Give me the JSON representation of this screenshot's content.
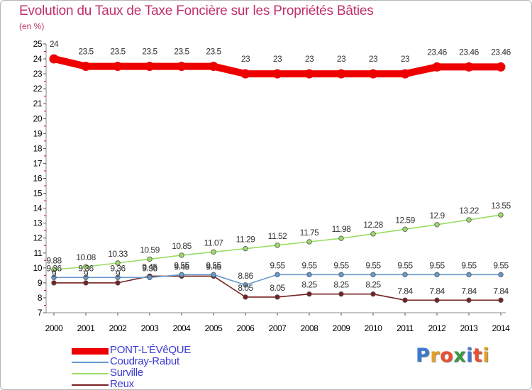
{
  "title": "Evolution du Taux de Taxe Foncière sur les Propriétés Bâties",
  "subtitle": "(en %)",
  "logo": {
    "text": "Proxiti",
    "colors": [
      "#3a7ad0",
      "#e8a020",
      "#e85030",
      "#3a9a40",
      "#3a7ad0",
      "#e85030",
      "#e8a020"
    ]
  },
  "chart_data": {
    "type": "line",
    "x": [
      2000,
      2001,
      2002,
      2003,
      2004,
      2005,
      2006,
      2007,
      2008,
      2009,
      2010,
      2011,
      2012,
      2013,
      2014
    ],
    "ylim": [
      7,
      25
    ],
    "yticks": [
      7,
      8,
      9,
      10,
      11,
      12,
      13,
      14,
      15,
      16,
      17,
      18,
      19,
      20,
      21,
      22,
      23,
      24,
      25
    ],
    "grid": false,
    "legend_position": "bottom-left",
    "series": [
      {
        "name": "PONT-L'ÉVêQUE",
        "color": "#ee0000",
        "values": [
          24,
          23.5,
          23.5,
          23.5,
          23.5,
          23.5,
          23,
          23,
          23,
          23,
          23,
          23,
          23.46,
          23.46,
          23.46
        ],
        "labels": [
          "24",
          "23.5",
          "23.5",
          "23.5",
          "23.5",
          "23.5",
          "23",
          "23",
          "23",
          "23",
          "23",
          "23",
          "23.46",
          "23.46",
          "23.46"
        ]
      },
      {
        "name": "Coudray-Rabut",
        "color": "#6699cc",
        "values": [
          9.36,
          9.36,
          9.36,
          9.36,
          9.55,
          9.55,
          8.86,
          9.55,
          9.55,
          9.55,
          9.55,
          9.55,
          9.55,
          9.55,
          9.55
        ],
        "labels": [
          "9.36",
          "9.36",
          "9.36",
          "9.36",
          "9.55",
          "9.55",
          "8.86",
          "9.55",
          "9.55",
          "9.55",
          "9.55",
          "9.55",
          "9.55",
          "9.55",
          "9.55"
        ]
      },
      {
        "name": "Surville",
        "color": "#99dd66",
        "values": [
          9.88,
          10.08,
          10.33,
          10.59,
          10.85,
          11.07,
          11.29,
          11.52,
          11.75,
          11.98,
          12.28,
          12.59,
          12.9,
          13.22,
          13.55
        ],
        "labels": [
          "9.88",
          "10.08",
          "10.33",
          "10.59",
          "10.85",
          "11.07",
          "11.29",
          "11.52",
          "11.75",
          "11.98",
          "12.28",
          "12.59",
          "12.9",
          "13.22",
          "13.55"
        ]
      },
      {
        "name": "Reux",
        "color": "#772222",
        "values": [
          9,
          9,
          9,
          9.45,
          9.45,
          9.45,
          8.05,
          8.05,
          8.25,
          8.25,
          8.25,
          7.84,
          7.84,
          7.84,
          7.84
        ],
        "labels": [
          "9",
          "9",
          "9",
          "9.45",
          "9.45",
          "9.45",
          "8.05",
          "8.05",
          "8.25",
          "8.25",
          "8.25",
          "7.84",
          "7.84",
          "7.84",
          "7.84"
        ]
      }
    ]
  }
}
